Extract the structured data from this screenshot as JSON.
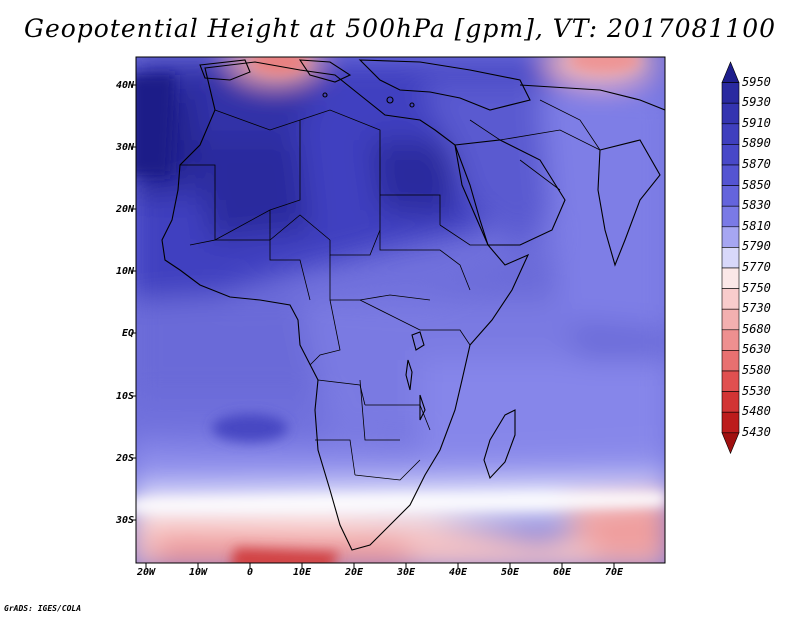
{
  "title": "Geopotential Height at 500hPa [gpm], VT: 2017081100",
  "credit": "GrADS: IGES/COLA",
  "lat_labels": [
    "40N",
    "30N",
    "20N",
    "10N",
    "EQ",
    "10S",
    "20S",
    "30S"
  ],
  "lon_labels": [
    "20W",
    "10W",
    "0",
    "10E",
    "20E",
    "30E",
    "40E",
    "50E",
    "60E",
    "70E"
  ],
  "colorbar": {
    "levels": [
      "5950",
      "5930",
      "5910",
      "5890",
      "5870",
      "5850",
      "5830",
      "5810",
      "5790",
      "5770",
      "5750",
      "5730",
      "5680",
      "5630",
      "5580",
      "5530",
      "5480",
      "5430"
    ],
    "colors": [
      "#1e1e8c",
      "#2a2aa0",
      "#3434b0",
      "#3f3fbe",
      "#4848c8",
      "#5454d2",
      "#6464dc",
      "#7a7ae6",
      "#a6a6f2",
      "#d8d8fa",
      "#fbe8e8",
      "#f8cccc",
      "#f3b0b0",
      "#ee9090",
      "#e87070",
      "#e05050",
      "#d23434",
      "#bc1c1c",
      "#a01010"
    ]
  },
  "colors": {
    "land_border": "#000000",
    "high_field": "#3c3cba",
    "mid_field": "#7676e0",
    "low_field": "#ee9a9a",
    "white_band": "#ffffff"
  }
}
